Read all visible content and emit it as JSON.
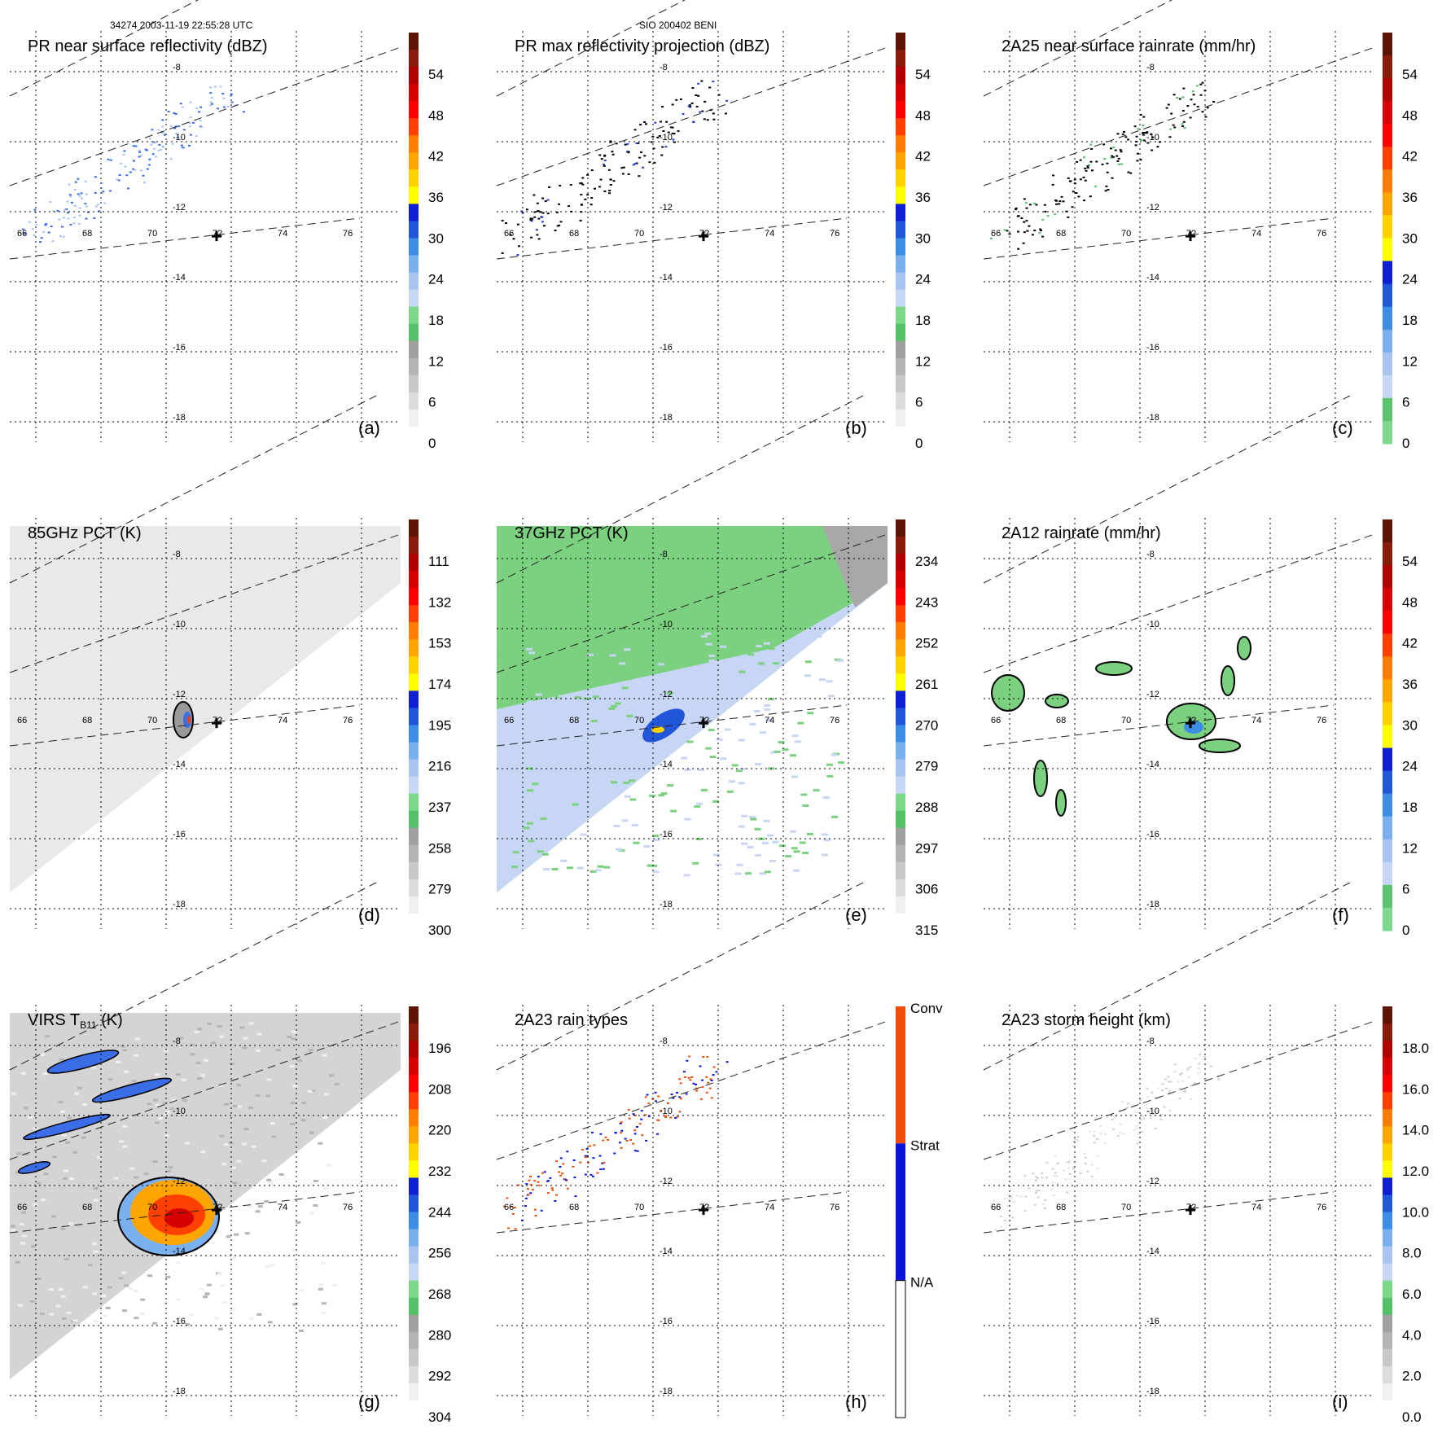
{
  "header": {
    "orbit_time": "34274 2003-11-19 22:55:28 UTC",
    "storm_id": "SIO 200402 BENI"
  },
  "map": {
    "lon_ticks": [
      "66",
      "68",
      "70",
      "72",
      "74",
      "76"
    ],
    "lat_ticks": [
      "-8",
      "-10",
      "-12",
      "-14",
      "-16",
      "-18"
    ],
    "storm_center": {
      "lon": 71.5,
      "lat": -12.7
    }
  },
  "panels": [
    {
      "id": "a",
      "title": "PR near surface reflectivity (dBZ)",
      "letter": "(a)",
      "bar": "dbz",
      "ticks": [
        "54",
        "48",
        "42",
        "36",
        "30",
        "24",
        "18",
        "12",
        "6",
        "0"
      ],
      "field": "pr_sfc"
    },
    {
      "id": "b",
      "title": "PR max reflectivity projection (dBZ)",
      "letter": "(b)",
      "bar": "dbz",
      "ticks": [
        "54",
        "48",
        "42",
        "36",
        "30",
        "24",
        "18",
        "12",
        "6",
        "0"
      ],
      "field": "pr_max"
    },
    {
      "id": "c",
      "title": "2A25 near surface rainrate (mm/hr)",
      "letter": "(c)",
      "bar": "rain",
      "ticks": [
        "54",
        "48",
        "42",
        "36",
        "30",
        "24",
        "18",
        "12",
        "6",
        "0"
      ],
      "field": "pr_rain"
    },
    {
      "id": "d",
      "title": "85GHz PCT (K)",
      "letter": "(d)",
      "bar": "dbz",
      "ticks": [
        "111",
        "132",
        "153",
        "174",
        "195",
        "216",
        "237",
        "258",
        "279",
        "300"
      ],
      "field": "pct85"
    },
    {
      "id": "e",
      "title": "37GHz PCT (K)",
      "letter": "(e)",
      "bar": "dbz",
      "ticks": [
        "234",
        "243",
        "252",
        "261",
        "270",
        "279",
        "288",
        "297",
        "306",
        "315"
      ],
      "field": "pct37"
    },
    {
      "id": "f",
      "title": "2A12 rainrate (mm/hr)",
      "letter": "(f)",
      "bar": "rain",
      "ticks": [
        "54",
        "48",
        "42",
        "36",
        "30",
        "24",
        "18",
        "12",
        "6",
        "0"
      ],
      "field": "tmi_rain"
    },
    {
      "id": "g",
      "title": "VIRS T",
      "title_sub": "B11",
      "title_tail": " (K)",
      "letter": "(g)",
      "bar": "dbz",
      "ticks": [
        "196",
        "208",
        "220",
        "232",
        "244",
        "256",
        "268",
        "280",
        "292",
        "304"
      ],
      "field": "virs"
    },
    {
      "id": "h",
      "title": "2A23 rain types",
      "letter": "(h)",
      "bar": "types",
      "ticks": [
        "Conv",
        "Strat",
        "N/A"
      ],
      "field": "raintype"
    },
    {
      "id": "i",
      "title": "2A23 storm height (km)",
      "letter": "(i)",
      "bar": "dbz",
      "ticks": [
        "18.0",
        "16.0",
        "14.0",
        "12.0",
        "10.0",
        "8.0",
        "6.0",
        "4.0",
        "2.0",
        "0.0"
      ],
      "field": "height"
    }
  ],
  "colors": {
    "dbz": [
      "#ffffff",
      "#f0f0f0",
      "#dcdcdc",
      "#c8c8c8",
      "#b4b4b4",
      "#a0a0a0",
      "#55c167",
      "#7ad888",
      "#c6d8f5",
      "#a9c4f0",
      "#7ab0ee",
      "#3b8de6",
      "#2156d9",
      "#0f1fd4",
      "#ffff00",
      "#ffd200",
      "#ffa500",
      "#ff7d00",
      "#ff4000",
      "#ff0000",
      "#d70000",
      "#b00000",
      "#8a1a0a",
      "#5c1505"
    ],
    "rain": [
      "#7ed890",
      "#5cc46c",
      "#c6d8f5",
      "#a9c4f0",
      "#7ab0ee",
      "#3b8de6",
      "#2156d9",
      "#0f1fd4",
      "#ffff00",
      "#ffd200",
      "#ffa500",
      "#ff7d00",
      "#ff4000",
      "#ff0000",
      "#d70000",
      "#b00000",
      "#8a1a0a",
      "#5c1505"
    ],
    "conv": "#f04e0a",
    "strat": "#0a14d8",
    "fill_green": "#7bd17f",
    "fill_blue": "#c6d6f4",
    "fill_gray": "#e6e6e6"
  }
}
